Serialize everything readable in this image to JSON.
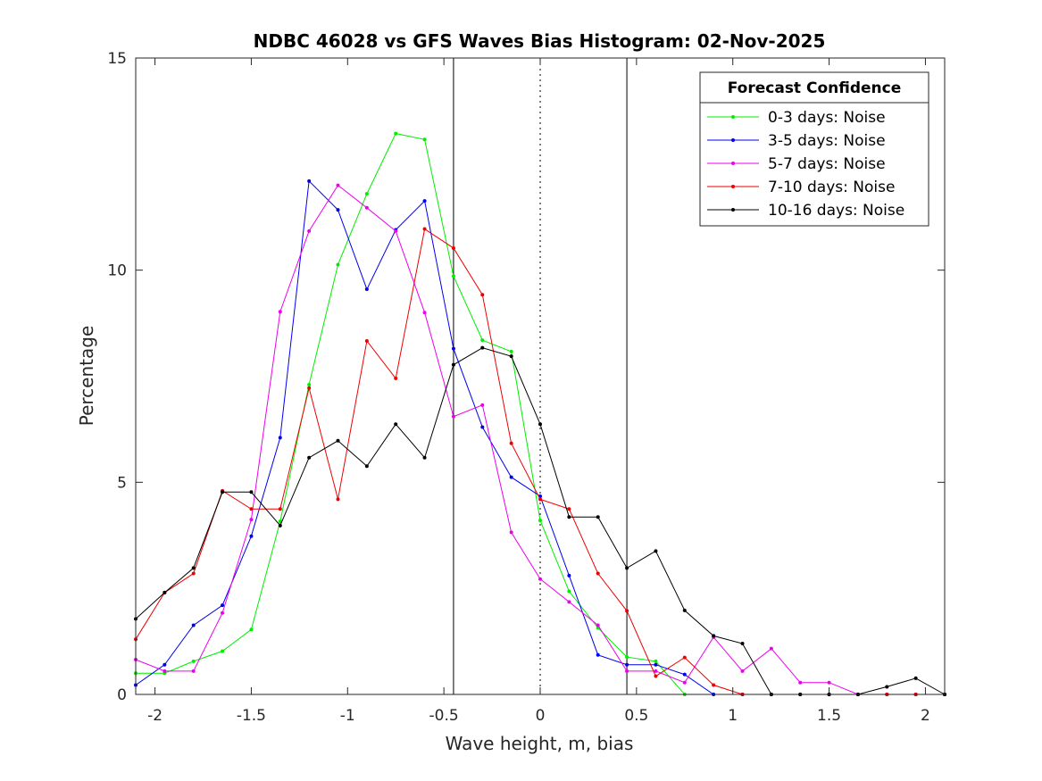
{
  "chart_data": {
    "type": "line",
    "title": "NDBC 46028 vs GFS Waves Bias Histogram: 02-Nov-2025",
    "xlabel": "Wave height, m, bias",
    "ylabel": "Percentage",
    "xlim": [
      -2.1,
      2.1
    ],
    "ylim": [
      0,
      15
    ],
    "xticks": [
      -2,
      -1.5,
      -1,
      -0.5,
      0,
      0.5,
      1,
      1.5,
      2
    ],
    "xtick_labels": [
      "-2",
      "-1.5",
      "-1",
      "-0.5",
      "0",
      "0.5",
      "1",
      "1.5",
      "2"
    ],
    "yticks": [
      0,
      5,
      10,
      15
    ],
    "ytick_labels": [
      "0",
      "5",
      "10",
      "15"
    ],
    "grid": false,
    "legend": {
      "title": "Forecast Confidence",
      "position": "top-right"
    },
    "vlines": [
      {
        "x": -0.45,
        "style": "solid"
      },
      {
        "x": 0,
        "style": "dotted"
      },
      {
        "x": 0.45,
        "style": "solid"
      }
    ],
    "x": [
      -2.1,
      -1.95,
      -1.8,
      -1.65,
      -1.5,
      -1.35,
      -1.2,
      -1.05,
      -0.9,
      -0.75,
      -0.6,
      -0.45,
      -0.3,
      -0.15,
      0,
      0.15,
      0.3,
      0.45,
      0.6,
      0.75,
      0.9,
      1.05,
      1.2,
      1.35,
      1.5,
      1.65,
      1.8,
      1.95,
      2.1
    ],
    "series": [
      {
        "name": "0-3 days: Noise",
        "color": "#00ee00",
        "values": [
          0.5,
          0.5,
          0.78,
          1.02,
          1.53,
          4.08,
          7.3,
          10.13,
          11.8,
          13.22,
          13.08,
          9.86,
          8.35,
          8.08,
          4.1,
          2.43,
          1.57,
          0.88,
          0.78,
          0,
          0,
          0,
          0,
          0,
          0,
          0,
          0,
          0,
          0
        ]
      },
      {
        "name": "3-5 days: Noise",
        "color": "#0000ee",
        "values": [
          0.22,
          0.7,
          1.63,
          2.1,
          3.73,
          6.05,
          12.1,
          11.42,
          9.55,
          10.95,
          11.63,
          8.15,
          6.3,
          5.12,
          4.67,
          2.8,
          0.93,
          0.7,
          0.7,
          0.47,
          0,
          0,
          0,
          0,
          0,
          0,
          0,
          0,
          0
        ]
      },
      {
        "name": "5-7 days: Noise",
        "color": "#ee00ee",
        "values": [
          0.82,
          0.55,
          0.55,
          1.92,
          4.12,
          9.02,
          10.92,
          12.0,
          11.47,
          10.92,
          9.0,
          6.55,
          6.82,
          3.82,
          2.72,
          2.18,
          1.63,
          0.55,
          0.55,
          0.28,
          1.35,
          0.55,
          1.08,
          0.28,
          0.28,
          0,
          0,
          0,
          0
        ]
      },
      {
        "name": "7-10 days: Noise",
        "color": "#ee0000",
        "values": [
          1.3,
          2.4,
          2.85,
          4.8,
          4.37,
          4.37,
          7.22,
          4.6,
          8.33,
          7.45,
          10.97,
          10.52,
          9.42,
          5.92,
          4.6,
          4.37,
          2.85,
          1.97,
          0.43,
          0.87,
          0.22,
          0,
          0,
          0,
          0,
          0,
          0,
          0,
          0
        ]
      },
      {
        "name": "10-16 days: Noise",
        "color": "#000000",
        "values": [
          1.78,
          2.4,
          2.98,
          4.77,
          4.77,
          3.98,
          5.58,
          5.98,
          5.38,
          6.37,
          5.58,
          7.77,
          8.17,
          7.97,
          6.37,
          4.18,
          4.18,
          2.98,
          3.38,
          1.98,
          1.38,
          1.2,
          0,
          0,
          0,
          0,
          0.18,
          0.38,
          0
        ]
      }
    ]
  }
}
